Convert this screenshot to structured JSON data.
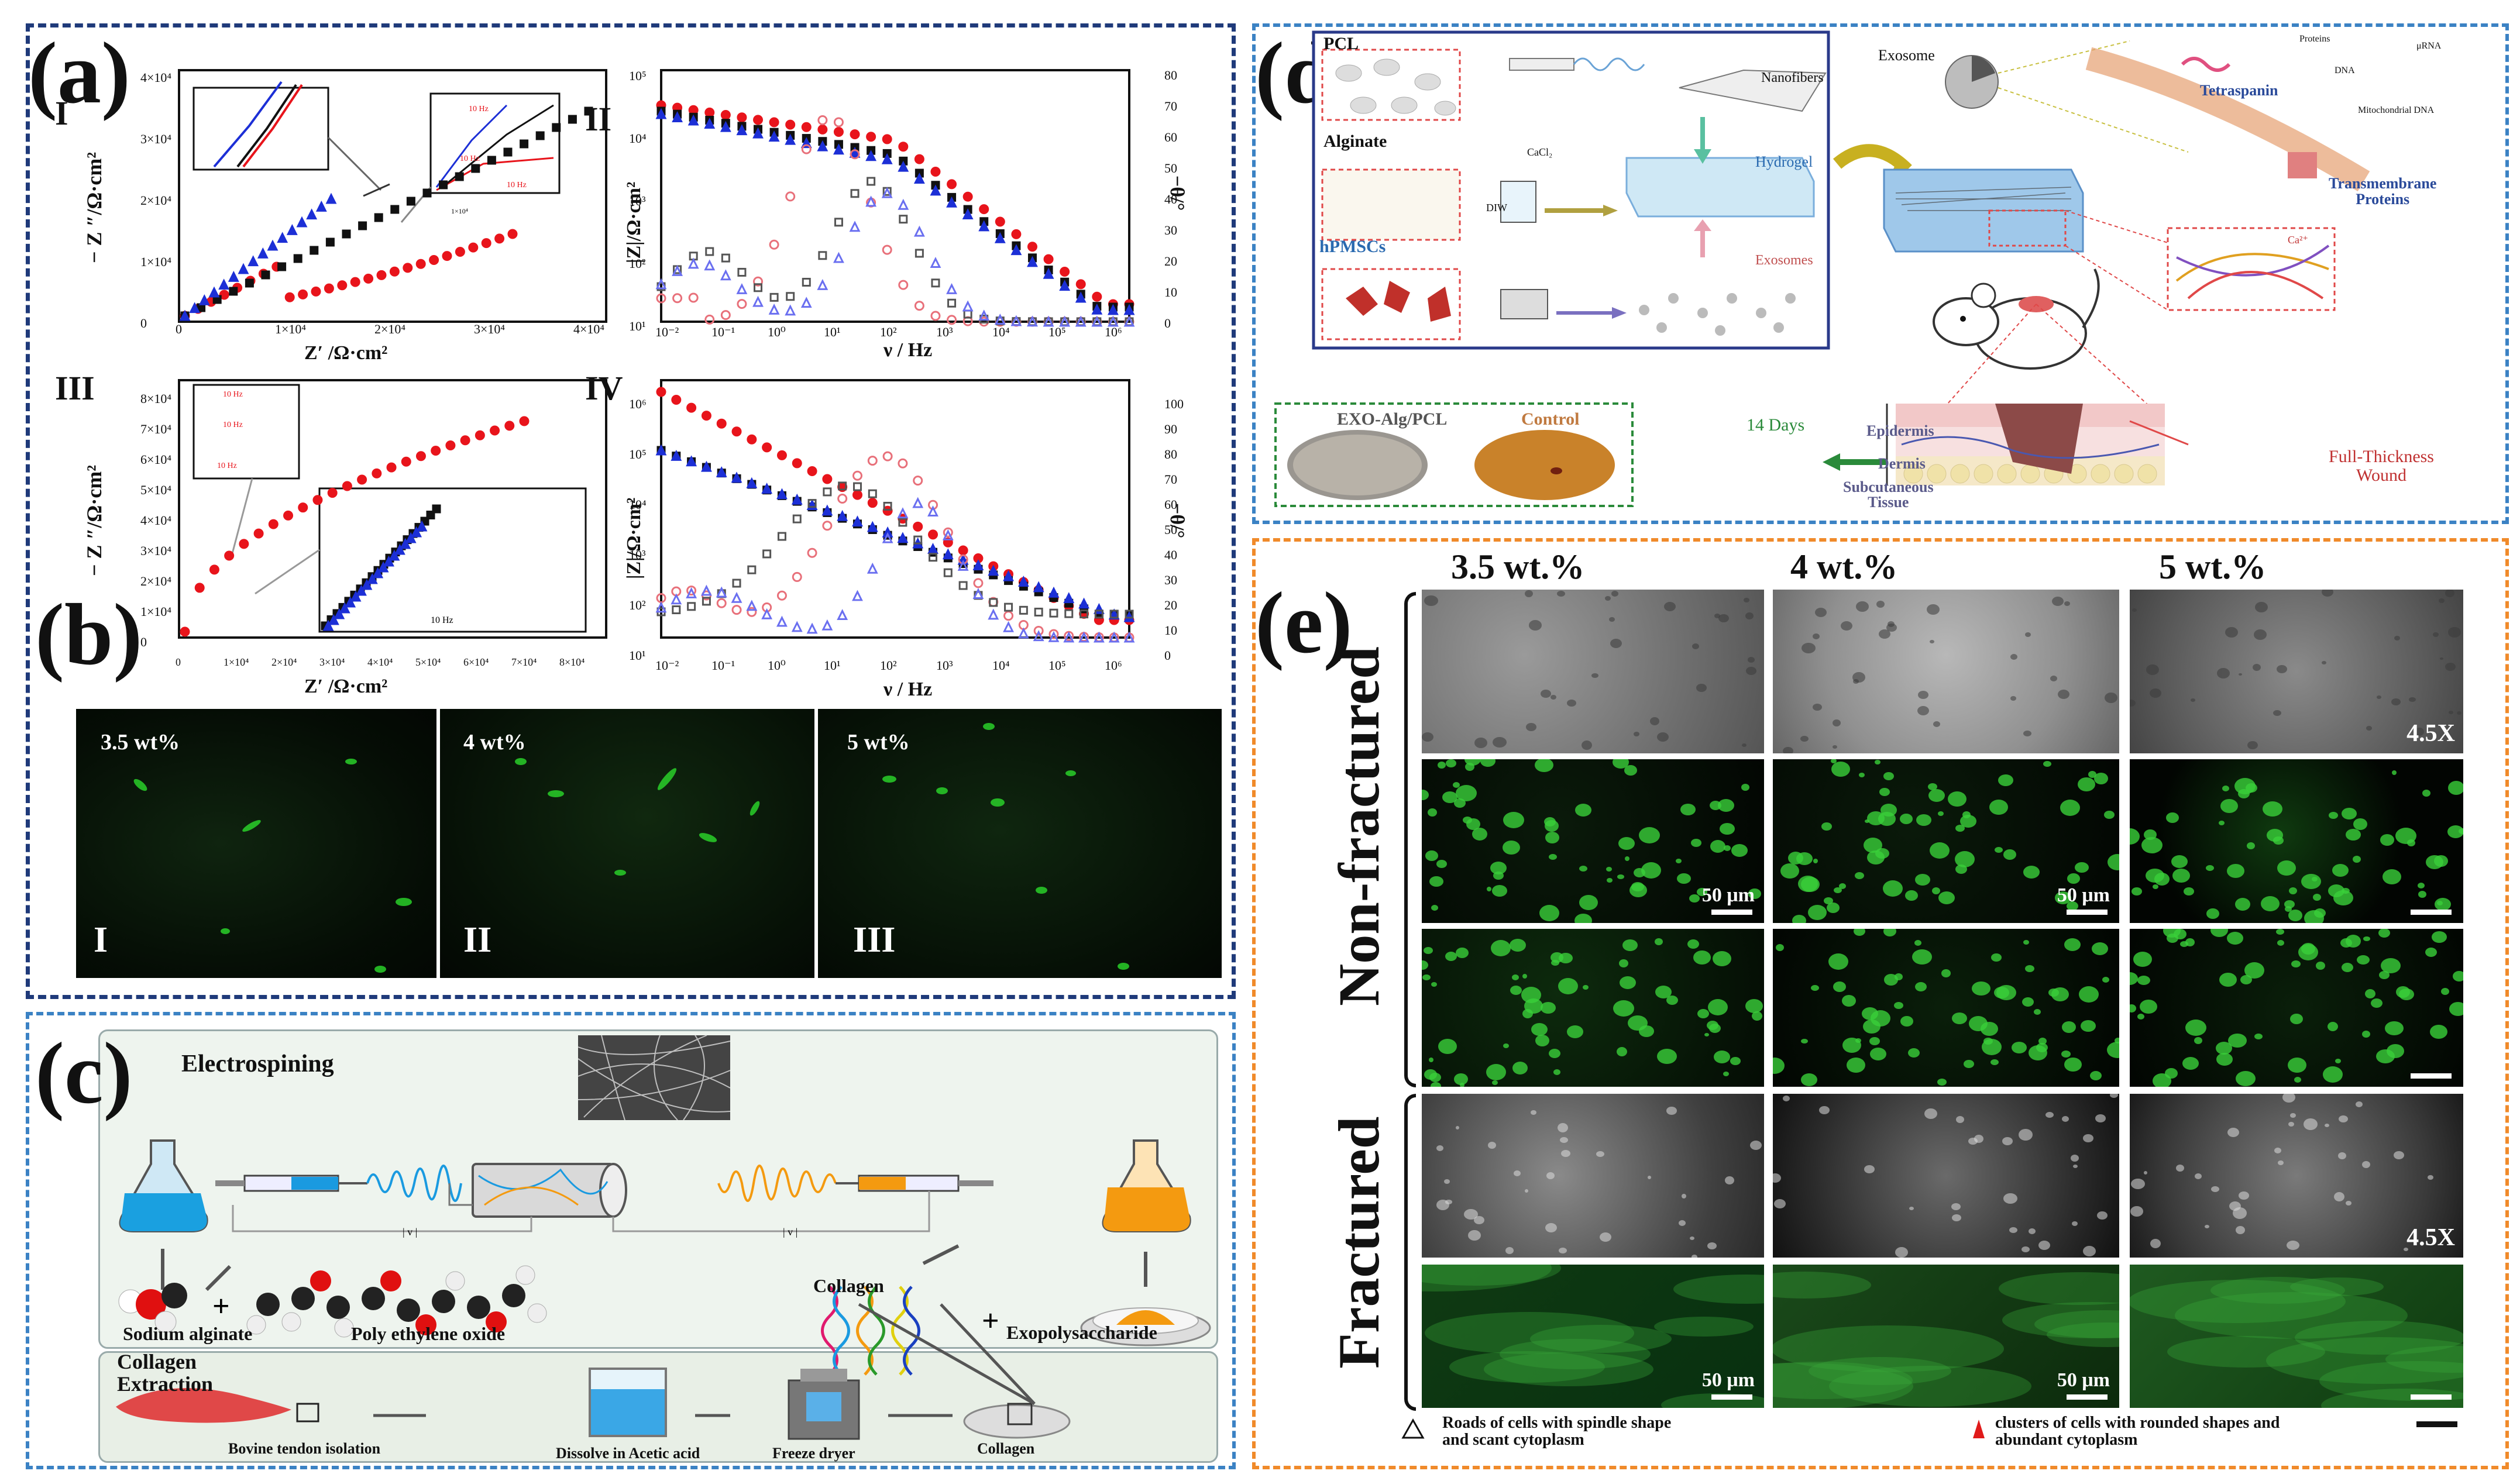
{
  "panels": {
    "a": {
      "letter": "(a)",
      "subplots": [
        {
          "id": "I",
          "ylabel": "− Z ″/Ω·cm²",
          "xlabel": "Z′ /Ω·cm²",
          "annotation": "1×10⁴",
          "inset_note": "10 Hz"
        },
        {
          "id": "II",
          "ylabel": "|Z|/Ω·cm²",
          "y2label": "−θ/°",
          "xlabel": "ν / Hz"
        },
        {
          "id": "III",
          "ylabel": "− Z ″/Ω·cm²",
          "xlabel": "Z′ /Ω·cm²",
          "inset_note": "10 Hz"
        },
        {
          "id": "IV",
          "ylabel": "|Z|/Ω·cm²",
          "y2label": "−θ/°",
          "xlabel": "ν / Hz"
        }
      ],
      "ticks": {
        "nyquist_I_y": [
          "0",
          "1×10⁴",
          "2×10⁴",
          "3×10⁴",
          "4×10⁴"
        ],
        "nyquist_I_x": [
          "0",
          "1×10⁴",
          "2×10⁴",
          "3×10⁴",
          "4×10⁴"
        ],
        "nyquist_III_y": [
          "0",
          "1×10⁴",
          "2×10⁴",
          "3×10⁴",
          "4×10⁴",
          "5×10⁴",
          "6×10⁴",
          "7×10⁴",
          "8×10⁴"
        ],
        "nyquist_III_x": [
          "0",
          "1×10⁴",
          "2×10⁴",
          "3×10⁴",
          "4×10⁴",
          "5×10⁴",
          "6×10⁴",
          "7×10⁴",
          "8×10⁴"
        ],
        "bode_x": [
          "10⁻²",
          "10⁻¹",
          "10⁰",
          "10¹",
          "10²",
          "10³",
          "10⁴",
          "10⁵",
          "10⁶"
        ],
        "bode_II_y": [
          "10¹",
          "10²",
          "10³",
          "10⁴",
          "10⁵"
        ],
        "bode_II_y2": [
          "0",
          "10",
          "20",
          "30",
          "40",
          "50",
          "60",
          "70",
          "80"
        ],
        "bode_IV_y": [
          "10¹",
          "10²",
          "10³",
          "10⁴",
          "10⁵",
          "10⁶"
        ],
        "bode_IV_y2": [
          "0",
          "10",
          "20",
          "30",
          "40",
          "50",
          "60",
          "70",
          "80",
          "90",
          "100"
        ]
      }
    },
    "b": {
      "letter": "(b)",
      "images": [
        {
          "label": "3.5 wt%",
          "roman": "I"
        },
        {
          "label": "4 wt%",
          "roman": "II"
        },
        {
          "label": "5 wt%",
          "roman": "III"
        }
      ]
    },
    "c": {
      "letter": "(c)",
      "title": "Electrospining",
      "labels": {
        "sodium_alginate": "Sodium alginate",
        "peo": "Poly ethylene oxide",
        "collagen": "Collagen",
        "exopoly": "Exopolysaccharide",
        "extraction": "Collagen\nExtraction",
        "bovine": "Bovine tendon isolation",
        "dissolve": "Dissolve in Acetic acid",
        "freeze": "Freeze dryer",
        "collagen_end": "Collagen"
      }
    },
    "d": {
      "letter": "(d)",
      "labels": {
        "pcl": "PCL",
        "nanofibers": "Nanofibers",
        "alginate": "Alginate",
        "cacl2": "CaCl₂",
        "diw": "DIW",
        "hydrogel": "Hydrogel",
        "hpmscs": "hPMSCs",
        "exosomes": "Exosomes",
        "exosome": "Exosome",
        "proteins": "Proteins",
        "mrna": "μRNA",
        "dna": "DNA",
        "mito_dna": "Mitochondrial DNA",
        "tetraspanin": "Tetraspanin",
        "transmembrane": "Transmembrane\nProteins",
        "ca": "Ca²⁺",
        "exo_alg": "EXO-Alg/PCL",
        "control": "Control",
        "days": "14 Days",
        "epidermis": "Epidermis",
        "dermis": "Dermis",
        "subcutaneous": "Subcutaneous\nTissue",
        "wound": "Full-Thickness\nWound"
      }
    },
    "e": {
      "letter": "(e)",
      "columns": [
        "3.5 wt.%",
        "4 wt.%",
        "5 wt.%"
      ],
      "row_groups": [
        "Non-fractured",
        "Fractured"
      ],
      "magnification": "4.5X",
      "scale": "50 μm",
      "legend": {
        "spindle": "Roads of cells with spindle shape\nand scant cytoplasm",
        "rounded": "clusters of cells with rounded shapes and\nabundant cytoplasm"
      }
    }
  },
  "colors": {
    "red": "#e8141b",
    "black": "#111111",
    "blue": "#1c2fd6",
    "gray": "#555555",
    "pink": "#e8707a",
    "lightblue": "#6a6ff0",
    "green": "#1aa31a",
    "navy": "#1f3a7a",
    "orange": "#f08a2a"
  }
}
